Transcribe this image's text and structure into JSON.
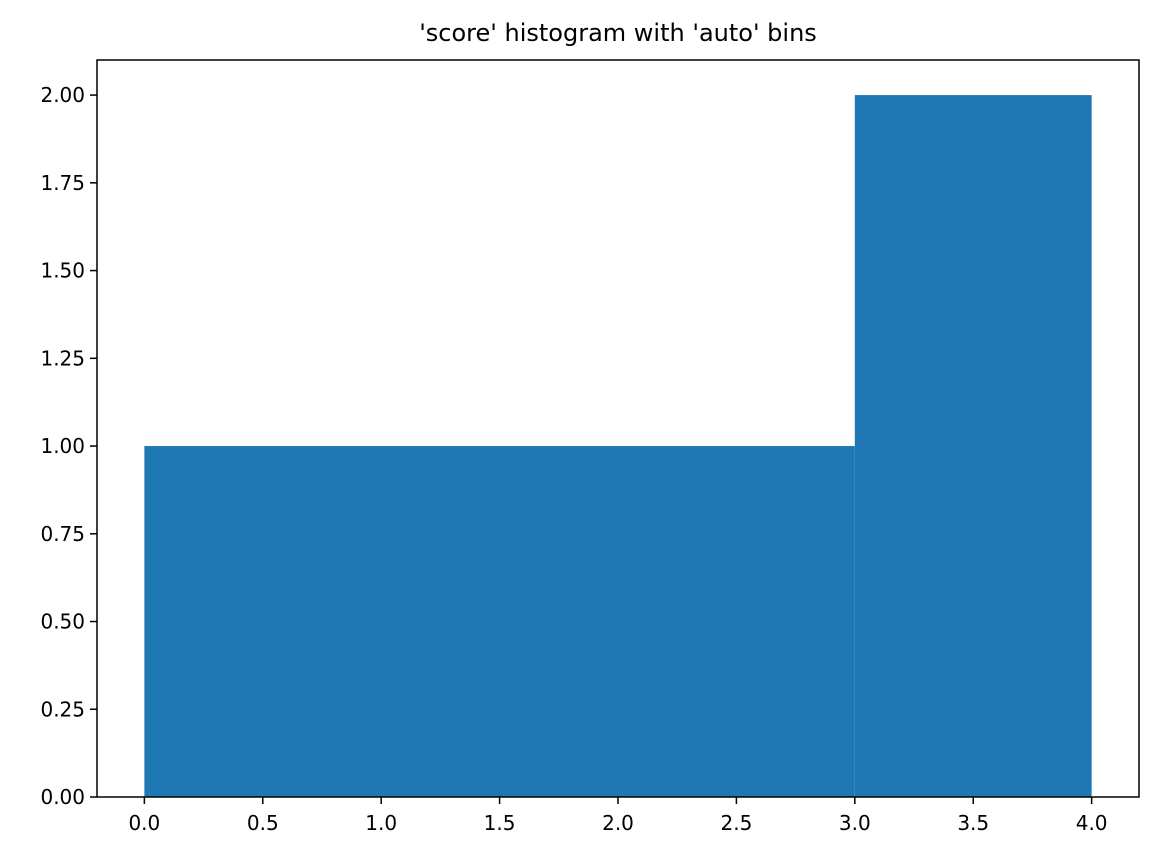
{
  "chart_data": {
    "type": "bar",
    "title": "'score' histogram with 'auto' bins",
    "xlabel": "",
    "ylabel": "",
    "bins": [
      {
        "start": 0.0,
        "end": 3.0,
        "count": 1
      },
      {
        "start": 3.0,
        "end": 4.0,
        "count": 2
      }
    ],
    "xlim": [
      -0.2,
      4.2
    ],
    "ylim": [
      0.0,
      2.1
    ],
    "xticks": [
      "0.0",
      "0.5",
      "1.0",
      "1.5",
      "2.0",
      "2.5",
      "3.0",
      "3.5",
      "4.0"
    ],
    "xtick_values": [
      0.0,
      0.5,
      1.0,
      1.5,
      2.0,
      2.5,
      3.0,
      3.5,
      4.0
    ],
    "yticks": [
      "0.00",
      "0.25",
      "0.50",
      "0.75",
      "1.00",
      "1.25",
      "1.50",
      "1.75",
      "2.00"
    ],
    "ytick_values": [
      0.0,
      0.25,
      0.5,
      0.75,
      1.0,
      1.25,
      1.5,
      1.75,
      2.0
    ],
    "grid": false,
    "legend": "none",
    "colors": {
      "bar": "#1f77b4",
      "axes": "#000000",
      "background": "#ffffff"
    }
  }
}
